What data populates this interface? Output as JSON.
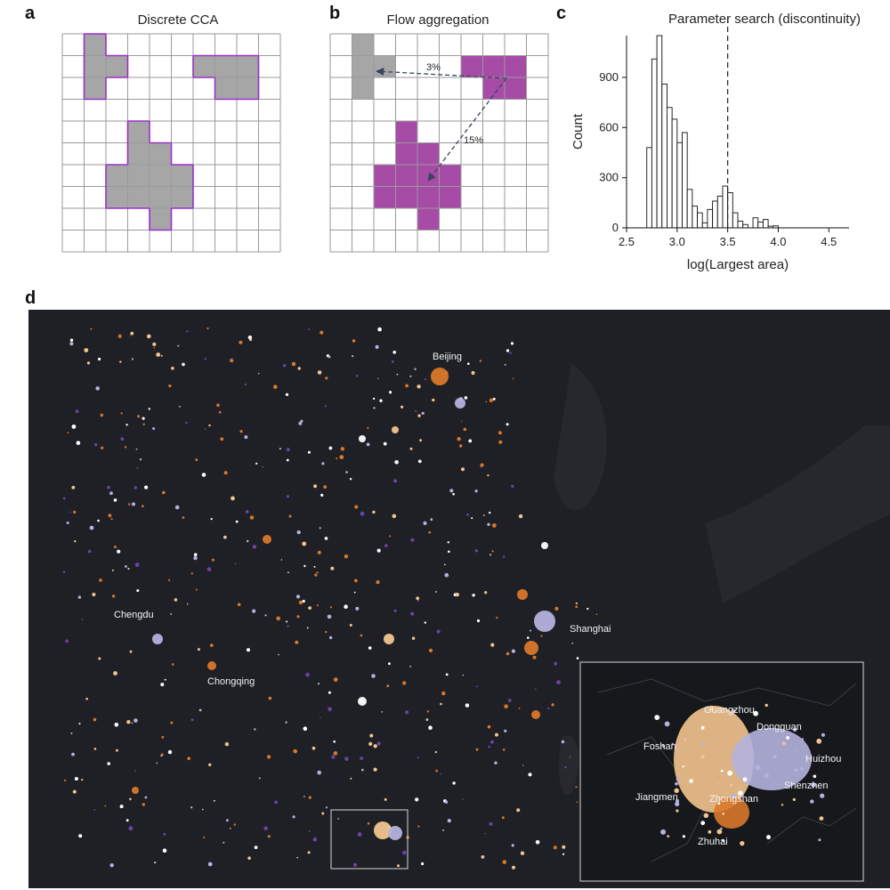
{
  "panels": {
    "a": {
      "letter": "a",
      "title": "Discrete CCA"
    },
    "b": {
      "letter": "b",
      "title": "Flow aggregation",
      "flows": [
        "3%",
        "15%"
      ]
    },
    "c": {
      "letter": "c",
      "title": "Parameter search (discontinuity)"
    },
    "d": {
      "letter": "d"
    }
  },
  "colors": {
    "grid_line": "#9a9a9a",
    "cell_gray": "#a6a6a6",
    "outline_purple": "#9b30c9",
    "magenta": "#a64ca6",
    "arrow": "#36445e",
    "map_bg": "#1e2025",
    "orange": "#d9782b",
    "peach": "#f3c48f",
    "lavender": "#b4b2de",
    "purple": "#6a43a8",
    "white": "#ffffff"
  },
  "chart_data": {
    "type": "bar",
    "title": "Parameter search (discontinuity)",
    "xlabel": "log(Largest area)",
    "ylabel": "Count",
    "xlim": [
      2.5,
      4.7
    ],
    "ylim": [
      0,
      1150
    ],
    "xticks": [
      "2.5",
      "3.0",
      "3.5",
      "4.0",
      "4.5"
    ],
    "xtick_values": [
      2.5,
      3.0,
      3.5,
      4.0,
      4.5
    ],
    "yticks": [
      "0",
      "300",
      "600",
      "900"
    ],
    "ytick_values": [
      0,
      300,
      600,
      900
    ],
    "threshold_x": 3.5,
    "bin_start": 2.7,
    "bin_width": 0.05,
    "values": [
      480,
      1010,
      1150,
      860,
      720,
      650,
      510,
      570,
      230,
      130,
      90,
      30,
      110,
      160,
      190,
      250,
      210,
      90,
      40,
      20,
      0,
      60,
      35,
      50,
      10,
      12
    ]
  },
  "map": {
    "cities": [
      "Beijing",
      "Chengdu",
      "Chongqing",
      "Shanghai"
    ],
    "inset_cities": [
      "Guangzhou",
      "Dongguan",
      "Foshan",
      "Huizhou",
      "Shenzhen",
      "Jiangmen",
      "Zhongshan",
      "Zhuhai"
    ]
  }
}
